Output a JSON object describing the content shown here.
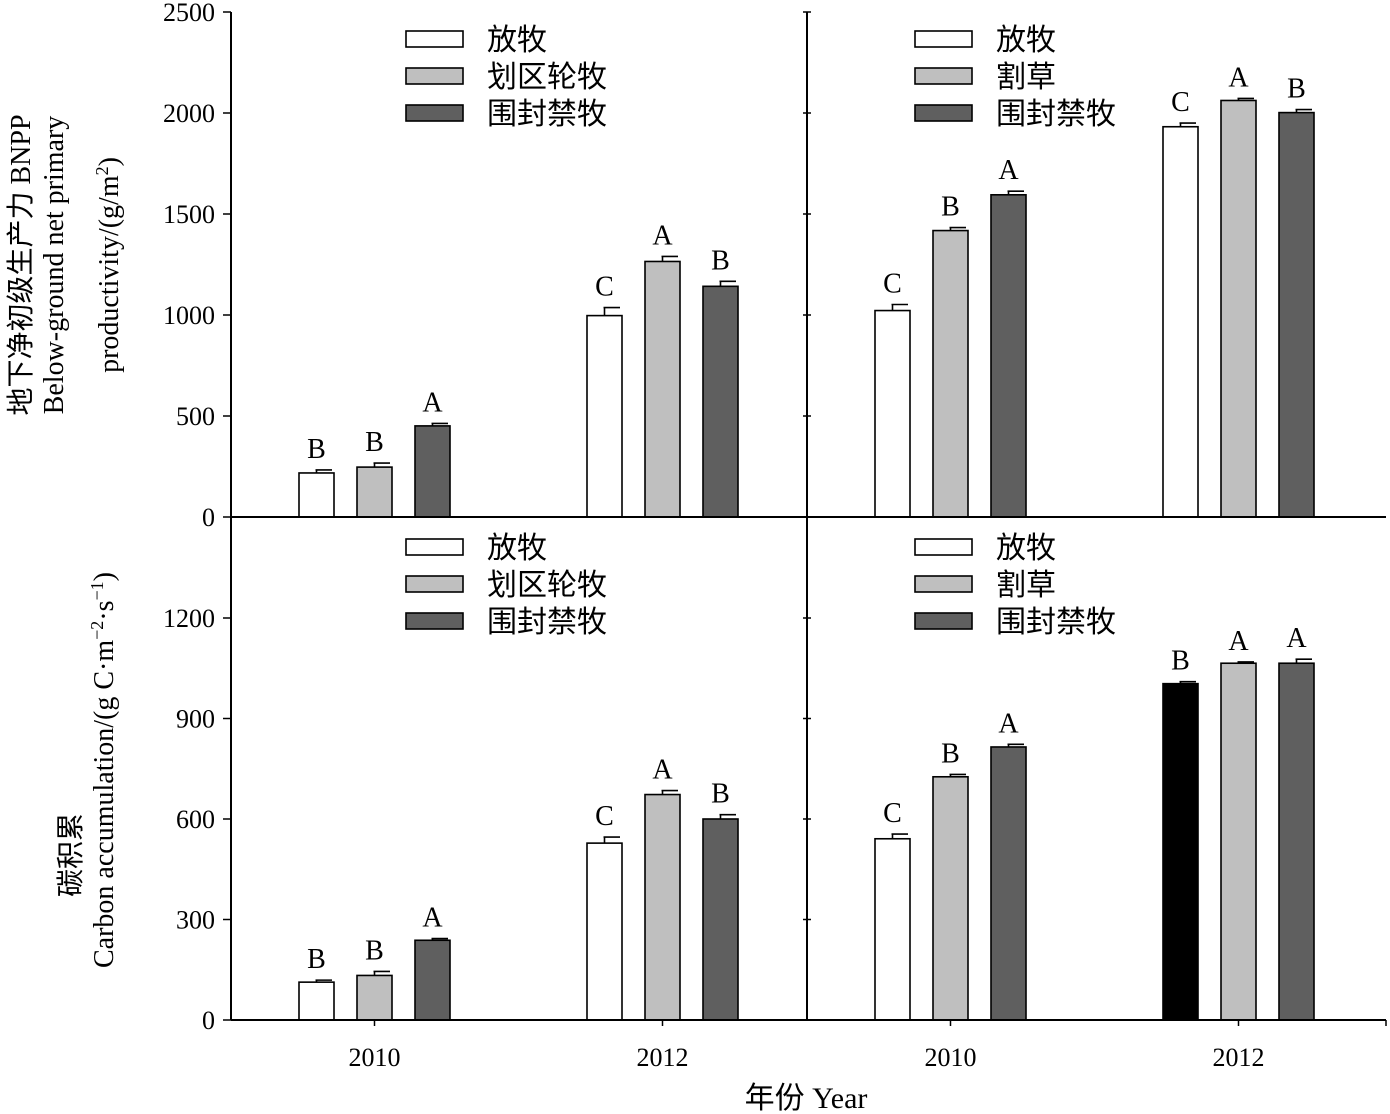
{
  "figure": {
    "x_axis_title": "年份 Year",
    "top_y_title_lines": [
      "地下净初级生产力 BNPP",
      "Below-ground net primary",
      "productivity/(g/m",
      "2",
      ")"
    ],
    "bottom_y_title_lines": [
      "碳积累",
      "Carbon accumulation/(g C·m",
      "−2",
      "·s",
      "−1",
      ")"
    ]
  },
  "chart_data": [
    {
      "type": "bar",
      "panel": "top-left",
      "categories": [
        "2010",
        "2012"
      ],
      "ylim": [
        0,
        2500
      ],
      "yticks": [
        0,
        500,
        1000,
        1500,
        2000,
        2500
      ],
      "legend": {
        "placement": "top-center"
      },
      "series": [
        {
          "name": "放牧",
          "color": "#ffffff",
          "values": [
            218,
            997
          ],
          "errors": [
            15,
            40
          ],
          "letters": [
            "B",
            "C"
          ]
        },
        {
          "name": "划区轮牧",
          "color": "#bfbfbf",
          "values": [
            247,
            1265
          ],
          "errors": [
            20,
            25
          ],
          "letters": [
            "B",
            "A"
          ]
        },
        {
          "name": "围封禁牧",
          "color": "#5f5f5f",
          "values": [
            451,
            1142
          ],
          "errors": [
            12,
            25
          ],
          "letters": [
            "A",
            "B"
          ]
        }
      ]
    },
    {
      "type": "bar",
      "panel": "top-right",
      "categories": [
        "2010",
        "2012"
      ],
      "ylim": [
        0,
        2500
      ],
      "yticks": [
        0,
        500,
        1000,
        1500,
        2000,
        2500
      ],
      "legend": {
        "placement": "top-center"
      },
      "series": [
        {
          "name": "放牧",
          "color": "#ffffff",
          "values": [
            1022,
            1932
          ],
          "errors": [
            30,
            18
          ],
          "letters": [
            "C",
            "C"
          ]
        },
        {
          "name": "割草",
          "color": "#bfbfbf",
          "values": [
            1418,
            2062
          ],
          "errors": [
            15,
            10
          ],
          "letters": [
            "B",
            "A"
          ]
        },
        {
          "name": "围封禁牧",
          "color": "#5f5f5f",
          "values": [
            1595,
            2002
          ],
          "errors": [
            18,
            15
          ],
          "letters": [
            "A",
            "B"
          ]
        }
      ]
    },
    {
      "type": "bar",
      "panel": "bottom-left",
      "categories": [
        "2010",
        "2012"
      ],
      "ylim": [
        0,
        1500
      ],
      "yticks": [
        0,
        300,
        600,
        900,
        1200
      ],
      "legend": {
        "placement": "top-center"
      },
      "series": [
        {
          "name": "放牧",
          "color": "#ffffff",
          "values": [
            113,
            528
          ],
          "errors": [
            6,
            18
          ],
          "letters": [
            "B",
            "C"
          ]
        },
        {
          "name": "划区轮牧",
          "color": "#bfbfbf",
          "values": [
            133,
            673
          ],
          "errors": [
            12,
            12
          ],
          "letters": [
            "B",
            "A"
          ]
        },
        {
          "name": "围封禁牧",
          "color": "#5f5f5f",
          "values": [
            238,
            600
          ],
          "errors": [
            5,
            13
          ],
          "letters": [
            "A",
            "B"
          ]
        }
      ]
    },
    {
      "type": "bar",
      "panel": "bottom-right",
      "categories": [
        "2010",
        "2012"
      ],
      "ylim": [
        0,
        1500
      ],
      "yticks": [
        0,
        300,
        600,
        900,
        1200
      ],
      "legend": {
        "placement": "top-center"
      },
      "series": [
        {
          "name": "放牧",
          "color": "#ffffff",
          "values": [
            541,
            1004
          ],
          "colors_override": [
            null,
            "#000000"
          ],
          "errors": [
            14,
            6
          ],
          "letters": [
            "C",
            "B"
          ]
        },
        {
          "name": "割草",
          "color": "#bfbfbf",
          "values": [
            726,
            1065
          ],
          "errors": [
            7,
            4
          ],
          "letters": [
            "B",
            "A"
          ]
        },
        {
          "name": "围封禁牧",
          "color": "#5f5f5f",
          "values": [
            815,
            1065
          ],
          "errors": [
            8,
            12
          ],
          "letters": [
            "A",
            "A"
          ]
        }
      ]
    }
  ]
}
